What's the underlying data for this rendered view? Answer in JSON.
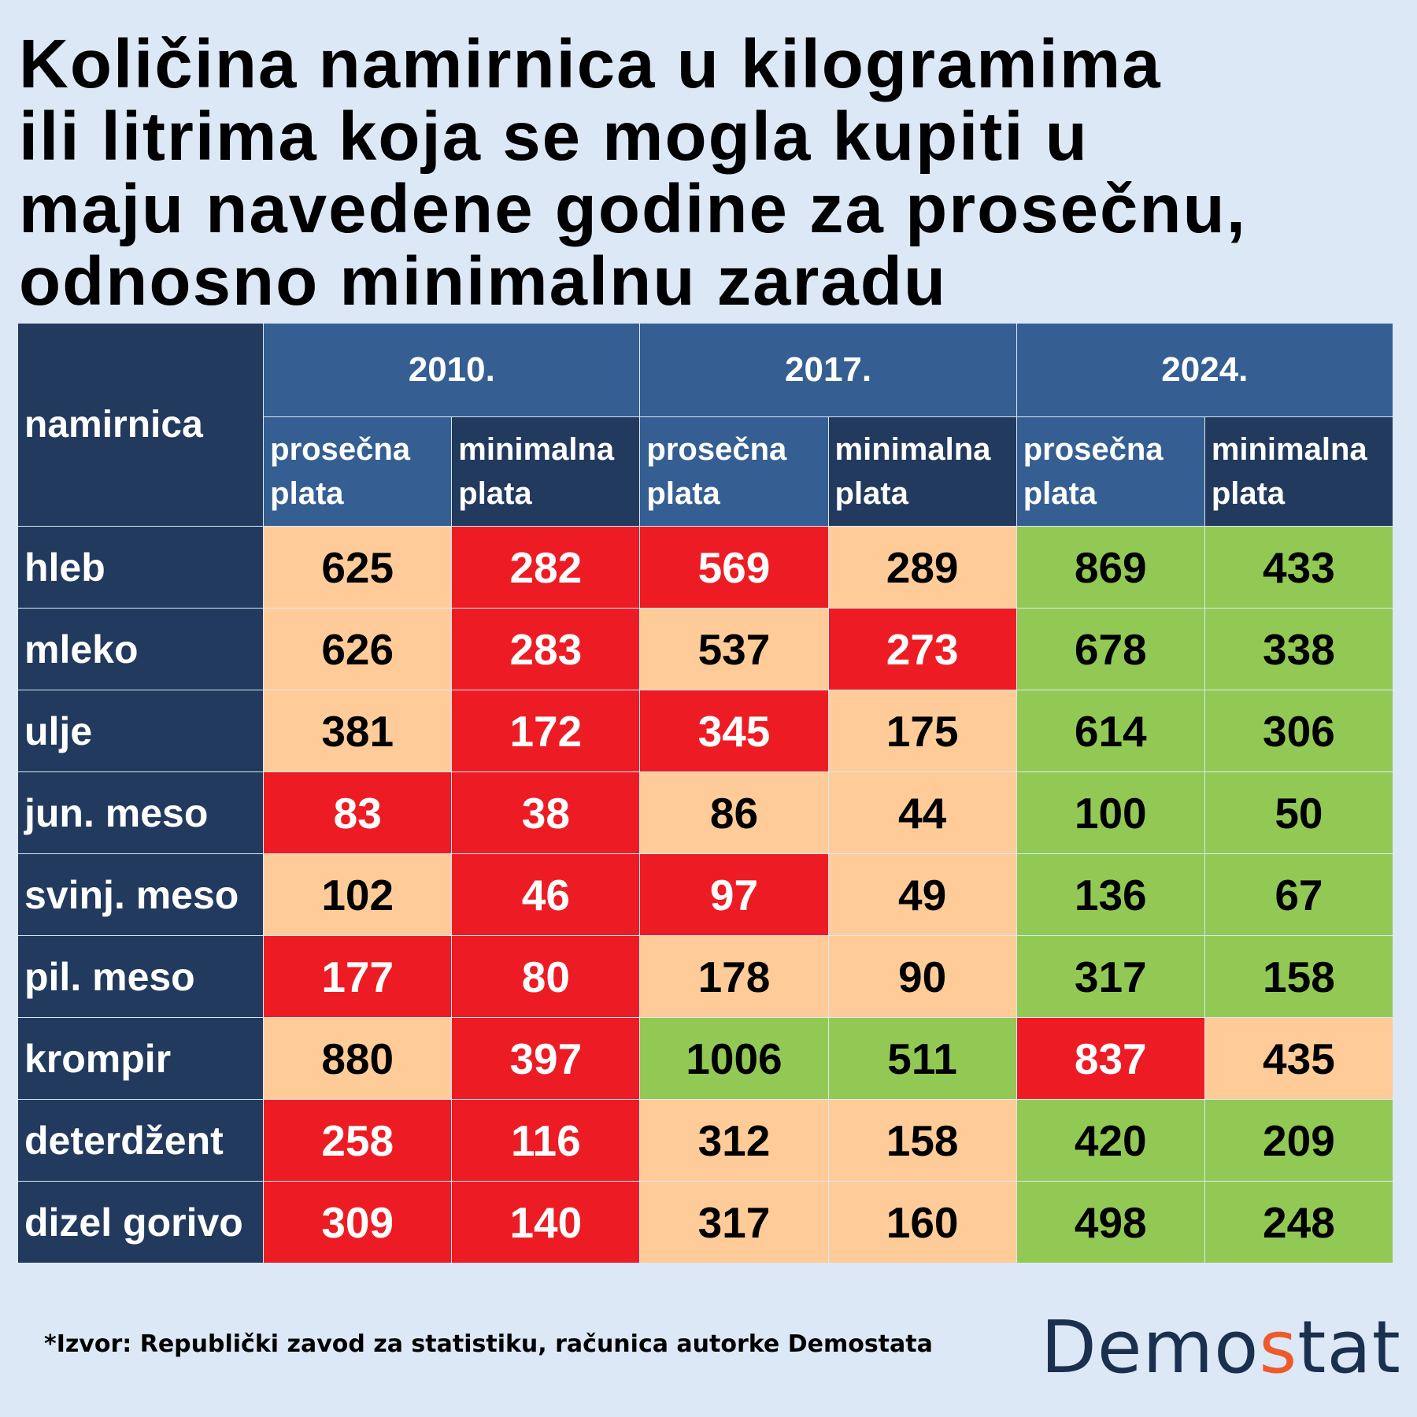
{
  "title_lines": [
    "Količina namirnica u kilogramima",
    "ili litrima koja se mogla kupiti u",
    "maju navedene godine za prosečnu,",
    "odnosno minimalnu zaradu"
  ],
  "header": {
    "corner": "namirnica",
    "years": [
      "2010.",
      "2017.",
      "2024."
    ],
    "sub_avg": [
      "prosečna",
      "plata"
    ],
    "sub_min": [
      "minimalna",
      "plata"
    ]
  },
  "chart_data": {
    "type": "table",
    "columns": [
      "2010. prosečna plata",
      "2010. minimalna plata",
      "2017. prosečna plata",
      "2017. minimalna plata",
      "2024. prosečna plata",
      "2024. minimalna plata"
    ],
    "rows": [
      {
        "label": "hleb",
        "values": [
          625,
          282,
          569,
          289,
          869,
          433
        ],
        "levels": [
          "mid",
          "low",
          "low",
          "mid",
          "high",
          "high"
        ]
      },
      {
        "label": "mleko",
        "values": [
          626,
          283,
          537,
          273,
          678,
          338
        ],
        "levels": [
          "mid",
          "low",
          "mid",
          "low",
          "high",
          "high"
        ]
      },
      {
        "label": "ulje",
        "values": [
          381,
          172,
          345,
          175,
          614,
          306
        ],
        "levels": [
          "mid",
          "low",
          "low",
          "mid",
          "high",
          "high"
        ]
      },
      {
        "label": "jun. meso",
        "values": [
          83,
          38,
          86,
          44,
          100,
          50
        ],
        "levels": [
          "low",
          "low",
          "mid",
          "mid",
          "high",
          "high"
        ]
      },
      {
        "label": "svinj. meso",
        "values": [
          102,
          46,
          97,
          49,
          136,
          67
        ],
        "levels": [
          "mid",
          "low",
          "low",
          "mid",
          "high",
          "high"
        ]
      },
      {
        "label": "pil. meso",
        "values": [
          177,
          80,
          178,
          90,
          317,
          158
        ],
        "levels": [
          "low",
          "low",
          "mid",
          "mid",
          "high",
          "high"
        ]
      },
      {
        "label": "krompir",
        "values": [
          880,
          397,
          1006,
          511,
          837,
          435
        ],
        "levels": [
          "mid",
          "low",
          "high",
          "high",
          "low",
          "mid"
        ]
      },
      {
        "label": "deterdžent",
        "values": [
          258,
          116,
          312,
          158,
          420,
          209
        ],
        "levels": [
          "low",
          "low",
          "mid",
          "mid",
          "high",
          "high"
        ]
      },
      {
        "label": "dizel gorivo",
        "values": [
          309,
          140,
          317,
          160,
          498,
          248
        ],
        "levels": [
          "low",
          "low",
          "mid",
          "mid",
          "high",
          "high"
        ]
      }
    ],
    "colors": {
      "mid": "#ffcc99",
      "low": "#ed1c24",
      "high": "#92c955",
      "header_light": "#355f92",
      "header_dark": "#223a5e"
    }
  },
  "source": "*Izvor: Republički zavod za statistiku, računica autorke Demostata",
  "logo": {
    "part1": "Demo",
    "accent": "s",
    "part2": "tat"
  }
}
